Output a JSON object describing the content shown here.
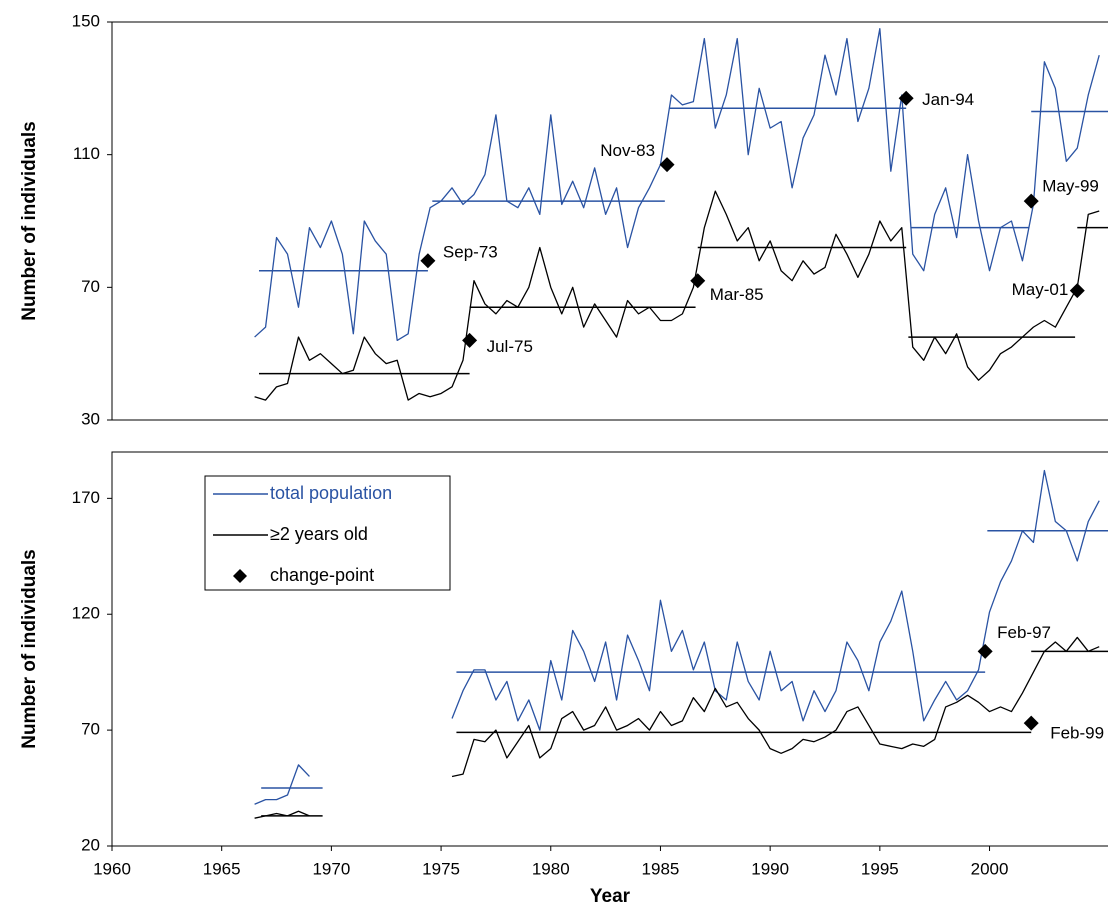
{
  "chart_data": [
    {
      "type": "line",
      "y_label": "Number of individuals",
      "xlim": [
        1960,
        2005.4
      ],
      "ylim": [
        30,
        150
      ],
      "yticks": [
        30,
        70,
        110,
        150
      ],
      "x": [
        1966.5,
        1967,
        1967.5,
        1968,
        1968.5,
        1969,
        1969.5,
        1970,
        1970.5,
        1971,
        1971.5,
        1972,
        1972.5,
        1973,
        1973.5,
        1974,
        1974.5,
        1975,
        1975.5,
        1976,
        1976.5,
        1977,
        1977.5,
        1978,
        1978.5,
        1979,
        1979.5,
        1980,
        1980.5,
        1981,
        1981.5,
        1982,
        1982.5,
        1983,
        1983.5,
        1984,
        1984.5,
        1985,
        1985.5,
        1986,
        1986.5,
        1987,
        1987.5,
        1988,
        1988.5,
        1989,
        1989.5,
        1990,
        1990.5,
        1991,
        1991.5,
        1992,
        1992.5,
        1993,
        1993.5,
        1994,
        1994.5,
        1995,
        1995.5,
        1996,
        1996.5,
        1997,
        1997.5,
        1998,
        1998.5,
        1999,
        1999.5,
        2000,
        2000.5,
        2001,
        2001.5,
        2002,
        2002.5,
        2003,
        2003.5,
        2004,
        2004.5,
        2005
      ],
      "series": [
        {
          "color": "#2a53a3",
          "values": [
            55,
            58,
            85,
            80,
            64,
            88,
            82,
            90,
            80,
            56,
            90,
            84,
            80,
            54,
            56,
            80,
            94,
            96,
            100,
            95,
            98,
            104,
            122,
            96,
            94,
            100,
            92,
            122,
            95,
            102,
            94,
            106,
            92,
            100,
            82,
            94,
            100,
            107,
            128,
            125,
            126,
            145,
            118,
            128,
            145,
            110,
            130,
            118,
            120,
            100,
            115,
            122,
            140,
            128,
            145,
            120,
            130,
            148,
            105,
            128,
            80,
            75,
            92,
            100,
            85,
            110,
            90,
            75,
            88,
            90,
            78,
            95,
            138,
            130,
            108,
            112,
            128,
            140
          ],
          "segments": [
            {
              "x": [
                1966.7,
                1974.4
              ],
              "value": 75
            },
            {
              "x": [
                1974.6,
                1985.2
              ],
              "value": 96
            },
            {
              "x": [
                1985.4,
                1996.2
              ],
              "value": 124
            },
            {
              "x": [
                1996.4,
                2001.8
              ],
              "value": 88
            },
            {
              "x": [
                2001.9,
                2005.4
              ],
              "value": 123
            }
          ]
        },
        {
          "color": "#000000",
          "values": [
            37,
            36,
            40,
            41,
            55,
            48,
            50,
            47,
            44,
            45,
            55,
            50,
            47,
            48,
            36,
            38,
            37,
            38,
            40,
            48,
            72,
            65,
            62,
            66,
            64,
            70,
            82,
            70,
            62,
            70,
            58,
            65,
            60,
            55,
            66,
            62,
            64,
            60,
            60,
            62,
            70,
            88,
            99,
            92,
            84,
            88,
            78,
            84,
            75,
            72,
            78,
            74,
            76,
            86,
            80,
            73,
            80,
            90,
            84,
            88,
            52,
            48,
            55,
            50,
            56,
            46,
            42,
            45,
            50,
            52,
            55,
            58,
            60,
            58,
            64,
            70,
            92,
            93
          ],
          "segments": [
            {
              "x": [
                1966.7,
                1976.3
              ],
              "value": 44
            },
            {
              "x": [
                1976.3,
                1986.6
              ],
              "value": 64
            },
            {
              "x": [
                1986.7,
                1996.2
              ],
              "value": 82
            },
            {
              "x": [
                1996.3,
                2003.9
              ],
              "value": 55
            },
            {
              "x": [
                2004.0,
                2005.4
              ],
              "value": 88
            }
          ]
        }
      ],
      "change_points": {
        "color": "#000000",
        "x": [
          1974.4,
          1976.3,
          1985.3,
          1986.7,
          1996.2,
          2001.9,
          2004.0
        ],
        "values": [
          78,
          54,
          107,
          72,
          127,
          96,
          69
        ],
        "labels": [
          "Sep-73",
          "Jul-75",
          "Nov-83",
          "Mar-85",
          "Jan-94",
          "May-99",
          "May-01"
        ]
      }
    },
    {
      "type": "line",
      "y_label": "Number of individuals",
      "x_label": "Year",
      "xlim": [
        1960,
        2005.4
      ],
      "xticks": [
        1960,
        1965,
        1970,
        1975,
        1980,
        1985,
        1990,
        1995,
        2000
      ],
      "ylim": [
        20,
        190
      ],
      "yticks": [
        20,
        70,
        120,
        170
      ],
      "legend": "upper left",
      "x": [
        1966.5,
        1967,
        1967.5,
        1968,
        1968.5,
        1969,
        1969.5,
        1970,
        1970.5,
        1971,
        1971.5,
        1972,
        1972.5,
        1973,
        1973.5,
        1974,
        1974.5,
        1975,
        1975.5,
        1976,
        1976.5,
        1977,
        1977.5,
        1978,
        1978.5,
        1979,
        1979.5,
        1980,
        1980.5,
        1981,
        1981.5,
        1982,
        1982.5,
        1983,
        1983.5,
        1984,
        1984.5,
        1985,
        1985.5,
        1986,
        1986.5,
        1987,
        1987.5,
        1988,
        1988.5,
        1989,
        1989.5,
        1990,
        1990.5,
        1991,
        1991.5,
        1992,
        1992.5,
        1993,
        1993.5,
        1994,
        1994.5,
        1995,
        1995.5,
        1996,
        1996.5,
        1997,
        1997.5,
        1998,
        1998.5,
        1999,
        1999.5,
        2000,
        2000.5,
        2001,
        2001.5,
        2002,
        2002.5,
        2003,
        2003.5,
        2004,
        2004.5,
        2005
      ],
      "series": [
        {
          "name": "total population",
          "color": "#2a53a3",
          "values": [
            38,
            40,
            40,
            42,
            55,
            50,
            null,
            null,
            null,
            null,
            null,
            null,
            null,
            null,
            null,
            null,
            null,
            null,
            75,
            87,
            96,
            96,
            83,
            91,
            74,
            83,
            70,
            100,
            83,
            113,
            104,
            91,
            108,
            83,
            111,
            100,
            87,
            126,
            104,
            113,
            96,
            108,
            87,
            83,
            108,
            91,
            83,
            104,
            87,
            91,
            74,
            87,
            78,
            87,
            108,
            100,
            87,
            108,
            117,
            130,
            104,
            74,
            83,
            91,
            83,
            87,
            96,
            121,
            134,
            143,
            156,
            151,
            182,
            160,
            156,
            143,
            160,
            169
          ],
          "segments": [
            {
              "x": [
                1966.8,
                1969.6
              ],
              "value": 45
            },
            {
              "x": [
                1975.7,
                1999.8
              ],
              "value": 95
            },
            {
              "x": [
                1999.9,
                2005.4
              ],
              "value": 156
            }
          ]
        },
        {
          "name": "≥2 years old",
          "color": "#000000",
          "values": [
            32,
            33,
            34,
            33,
            35,
            33,
            null,
            null,
            null,
            null,
            null,
            null,
            null,
            null,
            null,
            null,
            null,
            null,
            50,
            51,
            66,
            65,
            70,
            58,
            65,
            72,
            58,
            62,
            75,
            78,
            70,
            72,
            80,
            70,
            72,
            75,
            70,
            78,
            72,
            74,
            84,
            78,
            88,
            80,
            82,
            75,
            70,
            62,
            60,
            62,
            66,
            65,
            67,
            70,
            78,
            80,
            72,
            64,
            63,
            62,
            64,
            63,
            66,
            80,
            82,
            85,
            82,
            78,
            80,
            78,
            86,
            95,
            104,
            108,
            104,
            110,
            104,
            106
          ],
          "segments": [
            {
              "x": [
                1966.8,
                1969.6
              ],
              "value": 33
            },
            {
              "x": [
                1975.7,
                2001.9
              ],
              "value": 69
            },
            {
              "x": [
                2001.9,
                2005.4
              ],
              "value": 104
            }
          ]
        }
      ],
      "change_points": {
        "name": "change-point",
        "color": "#000000",
        "x": [
          1999.8,
          2001.9
        ],
        "values": [
          104,
          73
        ],
        "labels": [
          "Feb-97",
          "Feb-99"
        ]
      }
    }
  ]
}
